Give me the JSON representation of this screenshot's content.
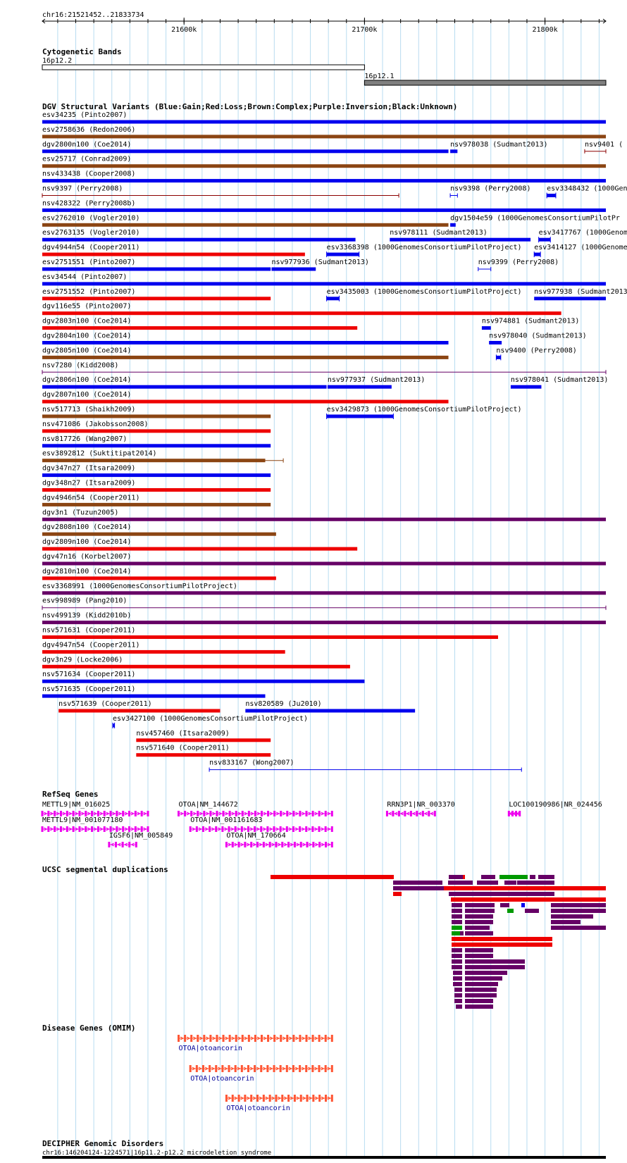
{
  "coord": "chr16:21521452..21833734",
  "ruler_ticks": [
    {
      "pos": 21600000,
      "label": "21600k"
    },
    {
      "pos": 21700000,
      "label": "21700k"
    },
    {
      "pos": 21800000,
      "label": "21800k"
    }
  ],
  "view": {
    "start": 21521452,
    "end": 21833734
  },
  "cyto": {
    "title": "Cytogenetic Bands",
    "bands": [
      {
        "label": "16p12.2",
        "start": 21521452,
        "end": 21700000,
        "stain": "gneg"
      },
      {
        "label": "16p12.1",
        "start": 21700000,
        "end": 21833734,
        "stain": "gpos"
      }
    ]
  },
  "colors": {
    "blue": "#0000ee",
    "red": "#ee0000",
    "brown": "#8b4513",
    "purple": "#660066",
    "black": "#000000",
    "magenta": "#ee00ee",
    "omim": "#ff5533",
    "green": "#009900",
    "dkred": "#8b0000"
  },
  "dgv": {
    "title": "DGV Structural Variants (Blue:Gain;Red:Loss;Brown:Complex;Purple:Inversion;Black:Unknown)",
    "features": [
      {
        "label": "esv34235 (Pinto2007)",
        "row": 0,
        "start": 21521452,
        "end": 21833734,
        "color": "blue"
      },
      {
        "label": "esv2758636 (Redon2006)",
        "row": 1,
        "start": 21521452,
        "end": 21833734,
        "color": "brown"
      },
      {
        "label": "dgv2800n100 (Coe2014)",
        "row": 2,
        "start": 21521452,
        "end": 21746500,
        "color": "blue"
      },
      {
        "label": "nsv978038 (Sudmant2013)",
        "row": 2,
        "start": 21747500,
        "end": 21751500,
        "color": "blue"
      },
      {
        "label": "nsv9401 (",
        "row": 2,
        "start": 21822000,
        "end": 21833734,
        "color": "dkred",
        "thin": true
      },
      {
        "label": "esv25717 (Conrad2009)",
        "row": 3,
        "start": 21521452,
        "end": 21833734,
        "color": "brown"
      },
      {
        "label": "nsv433438 (Cooper2008)",
        "row": 4,
        "start": 21521452,
        "end": 21833734,
        "color": "blue"
      },
      {
        "label": "nsv9397 (Perry2008)",
        "row": 5,
        "start": 21521452,
        "end": 21719000,
        "color": "dkred",
        "thin": true
      },
      {
        "label": "nsv9398 (Perry2008)",
        "row": 5,
        "start": 21747500,
        "end": 21751500,
        "color": "blue",
        "thin": true
      },
      {
        "label": "esv3348432 (1000Genom",
        "row": 5,
        "start": 21801000,
        "end": 21806000,
        "color": "blue",
        "blocky": true
      },
      {
        "label": "nsv428322 (Perry2008b)",
        "row": 6,
        "start": 21521452,
        "end": 21833734,
        "color": "blue"
      },
      {
        "label": "esv2762010 (Vogler2010)",
        "row": 7,
        "start": 21521452,
        "end": 21746500,
        "color": "brown"
      },
      {
        "label": "dgv1504e59 (1000GenomesConsortiumPilotPr",
        "row": 7,
        "start": 21747500,
        "end": 21750500,
        "color": "blue"
      },
      {
        "label": "esv2763135 (Vogler2010)",
        "row": 8,
        "start": 21521452,
        "end": 21695000,
        "color": "blue"
      },
      {
        "label": "nsv978111 (Sudmant2013)",
        "row": 8,
        "start": 21714000,
        "end": 21792000,
        "color": "blue"
      },
      {
        "label": "esv3417767 (1000Genome",
        "row": 8,
        "start": 21796500,
        "end": 21803000,
        "color": "blue",
        "blocky": true
      },
      {
        "label": "dgv4944n54 (Cooper2011)",
        "row": 9,
        "start": 21521452,
        "end": 21667000,
        "color": "red"
      },
      {
        "label": "esv3368398 (1000GenomesConsortiumPilotProject)",
        "row": 9,
        "start": 21679000,
        "end": 21697000,
        "color": "blue",
        "blocky": true
      },
      {
        "label": "esv3414127 (1000Genomes",
        "row": 9,
        "start": 21794000,
        "end": 21797500,
        "color": "blue",
        "blocky": true
      },
      {
        "label": "esv2751551 (Pinto2007)",
        "row": 10,
        "start": 21521452,
        "end": 21648000,
        "color": "blue"
      },
      {
        "label": "nsv977936 (Sudmant2013)",
        "row": 10,
        "start": 21648500,
        "end": 21673000,
        "color": "blue"
      },
      {
        "label": "nsv9399 (Perry2008)",
        "row": 10,
        "start": 21763000,
        "end": 21770000,
        "color": "blue",
        "thin": true
      },
      {
        "label": "esv34544 (Pinto2007)",
        "row": 11,
        "start": 21521452,
        "end": 21833734,
        "color": "blue"
      },
      {
        "label": "esv2751552 (Pinto2007)",
        "row": 12,
        "start": 21521452,
        "end": 21648000,
        "color": "red"
      },
      {
        "label": "esv3435003 (1000GenomesConsortiumPilotProject)",
        "row": 12,
        "start": 21679000,
        "end": 21686000,
        "color": "blue",
        "blocky": true
      },
      {
        "label": "nsv977938 (Sudmant2013)",
        "row": 12,
        "start": 21794000,
        "end": 21833734,
        "color": "blue"
      },
      {
        "label": "dgv116e55 (Pinto2007)",
        "row": 13,
        "start": 21521452,
        "end": 21809000,
        "color": "red"
      },
      {
        "label": "dgv2803n100 (Coe2014)",
        "row": 14,
        "start": 21521452,
        "end": 21696000,
        "color": "red"
      },
      {
        "label": "nsv974881 (Sudmant2013)",
        "row": 14,
        "start": 21765000,
        "end": 21770000,
        "color": "blue"
      },
      {
        "label": "dgv2804n100 (Coe2014)",
        "row": 15,
        "start": 21521452,
        "end": 21746500,
        "color": "blue"
      },
      {
        "label": "nsv978040 (Sudmant2013)",
        "row": 15,
        "start": 21769000,
        "end": 21776000,
        "color": "blue"
      },
      {
        "label": "dgv2805n100 (Coe2014)",
        "row": 16,
        "start": 21521452,
        "end": 21746500,
        "color": "brown"
      },
      {
        "label": "nsv9400 (Perry2008)",
        "row": 16,
        "start": 21773000,
        "end": 21775500,
        "color": "blue",
        "blocky": true
      },
      {
        "label": "nsv7280 (Kidd2008)",
        "row": 17,
        "start": 21521452,
        "end": 21833734,
        "color": "purple",
        "thin": true
      },
      {
        "label": "dgv2806n100 (Coe2014)",
        "row": 18,
        "start": 21521452,
        "end": 21679000,
        "color": "blue"
      },
      {
        "label": "nsv977937 (Sudmant2013)",
        "row": 18,
        "start": 21679500,
        "end": 21715000,
        "color": "blue"
      },
      {
        "label": "nsv978041 (Sudmant2013)",
        "row": 18,
        "start": 21781000,
        "end": 21798000,
        "color": "blue"
      },
      {
        "label": "dgv2807n100 (Coe2014)",
        "row": 19,
        "start": 21521452,
        "end": 21746500,
        "color": "red"
      },
      {
        "label": "nsv517713 (Shaikh2009)",
        "row": 20,
        "start": 21521452,
        "end": 21648000,
        "color": "brown"
      },
      {
        "label": "esv3429873 (1000GenomesConsortiumPilotProject)",
        "row": 20,
        "start": 21679000,
        "end": 21716000,
        "color": "blue",
        "blocky": true
      },
      {
        "label": "nsv471086 (Jakobsson2008)",
        "row": 21,
        "start": 21521452,
        "end": 21648000,
        "color": "red"
      },
      {
        "label": "nsv817726 (Wang2007)",
        "row": 22,
        "start": 21521452,
        "end": 21648000,
        "color": "blue"
      },
      {
        "label": "esv3892812 (Suktitipat2014)",
        "row": 23,
        "start": 21521452,
        "end": 21645000,
        "color": "brown",
        "tail": 21655000
      },
      {
        "label": "dgv347n27 (Itsara2009)",
        "row": 24,
        "start": 21521452,
        "end": 21648000,
        "color": "blue"
      },
      {
        "label": "dgv348n27 (Itsara2009)",
        "row": 25,
        "start": 21521452,
        "end": 21648000,
        "color": "red"
      },
      {
        "label": "dgv4946n54 (Cooper2011)",
        "row": 26,
        "start": 21521452,
        "end": 21648000,
        "color": "brown"
      },
      {
        "label": "dgv3n1 (Tuzun2005)",
        "row": 27,
        "start": 21521452,
        "end": 21833734,
        "color": "purple"
      },
      {
        "label": "dgv2808n100 (Coe2014)",
        "row": 28,
        "start": 21521452,
        "end": 21651000,
        "color": "brown"
      },
      {
        "label": "dgv2809n100 (Coe2014)",
        "row": 29,
        "start": 21521452,
        "end": 21696000,
        "color": "red"
      },
      {
        "label": "dgv47n16 (Korbel2007)",
        "row": 30,
        "start": 21521452,
        "end": 21833734,
        "color": "purple"
      },
      {
        "label": "dgv2810n100 (Coe2014)",
        "row": 31,
        "start": 21521452,
        "end": 21651000,
        "color": "red"
      },
      {
        "label": "esv3368991 (1000GenomesConsortiumPilotProject)",
        "row": 32,
        "start": 21521452,
        "end": 21833734,
        "color": "purple"
      },
      {
        "label": "esv998989 (Pang2010)",
        "row": 33,
        "start": 21521452,
        "end": 21833734,
        "color": "purple",
        "thin": true
      },
      {
        "label": "nsv499139 (Kidd2010b)",
        "row": 34,
        "start": 21521452,
        "end": 21833734,
        "color": "purple"
      },
      {
        "label": "nsv571631 (Cooper2011)",
        "row": 35,
        "start": 21521452,
        "end": 21774000,
        "color": "red"
      },
      {
        "label": "dgv4947n54 (Cooper2011)",
        "row": 36,
        "start": 21521452,
        "end": 21656000,
        "color": "red"
      },
      {
        "label": "dgv3n29 (Locke2006)",
        "row": 37,
        "start": 21521452,
        "end": 21692000,
        "color": "red"
      },
      {
        "label": "nsv571634 (Cooper2011)",
        "row": 38,
        "start": 21521452,
        "end": 21700000,
        "color": "blue"
      },
      {
        "label": "nsv571635 (Cooper2011)",
        "row": 39,
        "start": 21521452,
        "end": 21645000,
        "color": "blue"
      },
      {
        "label": "nsv571639 (Cooper2011)",
        "row": 40,
        "start": 21530500,
        "end": 21620000,
        "color": "red"
      },
      {
        "label": "nsv820589 (Ju2010)",
        "row": 40,
        "start": 21634000,
        "end": 21728000,
        "color": "blue"
      },
      {
        "label": "esv3427100 (1000GenomesConsortiumPilotProject)",
        "row": 41,
        "start": 21560500,
        "end": 21561500,
        "color": "blue",
        "blocky": true
      },
      {
        "label": "nsv457460 (Itsara2009)",
        "row": 42,
        "start": 21573500,
        "end": 21648000,
        "color": "red"
      },
      {
        "label": "nsv571640 (Cooper2011)",
        "row": 43,
        "start": 21573500,
        "end": 21648000,
        "color": "red"
      },
      {
        "label": "nsv833167 (Wong2007)",
        "row": 44,
        "start": 21614000,
        "end": 21787000,
        "color": "blue",
        "thin": true
      }
    ]
  },
  "refseq": {
    "title": "RefSeq Genes",
    "genes": [
      {
        "label": "METTL9|NM_016025",
        "row": 0,
        "start": 21521452,
        "end": 21580000,
        "strand": "+"
      },
      {
        "label": "METTL9|NM_001077180",
        "row": 1,
        "start": 21521452,
        "end": 21580000,
        "strand": "+"
      },
      {
        "label": "IGSF6|NM_005849",
        "row": 2,
        "start": 21558500,
        "end": 21573500,
        "strand": "-"
      },
      {
        "label": "OTOA|NM_144672",
        "row": 0,
        "start": 21597000,
        "end": 21682000,
        "strand": "+"
      },
      {
        "label": "OTOA|NM_001161683",
        "row": 1,
        "start": 21603500,
        "end": 21682000,
        "strand": "+"
      },
      {
        "label": "OTOA|NM_170664",
        "row": 2,
        "start": 21623500,
        "end": 21682000,
        "strand": "+"
      },
      {
        "label": "RRN3P1|NR_003370",
        "row": 0,
        "start": 21712500,
        "end": 21739000,
        "strand": "-"
      },
      {
        "label": "LOC100190986|NR_024456",
        "row": 0,
        "start": 21780000,
        "end": 21786000,
        "strand": "-"
      }
    ]
  },
  "segdups": {
    "title": "UCSC segmental duplications"
  },
  "omim": {
    "title": "Disease Genes (OMIM)",
    "genes": [
      {
        "label": "OTOA|otoancorin",
        "start": 21597000,
        "end": 21682000
      },
      {
        "label": "OTOA|otoancorin",
        "start": 21603500,
        "end": 21682000
      },
      {
        "label": "OTOA|otoancorin",
        "start": 21623500,
        "end": 21682000
      }
    ]
  },
  "decipher": {
    "title": "DECIPHER Genomic Disorders",
    "label": "chr16:146204124-1224571|16p11.2-p12.2 microdeletion syndrome"
  }
}
